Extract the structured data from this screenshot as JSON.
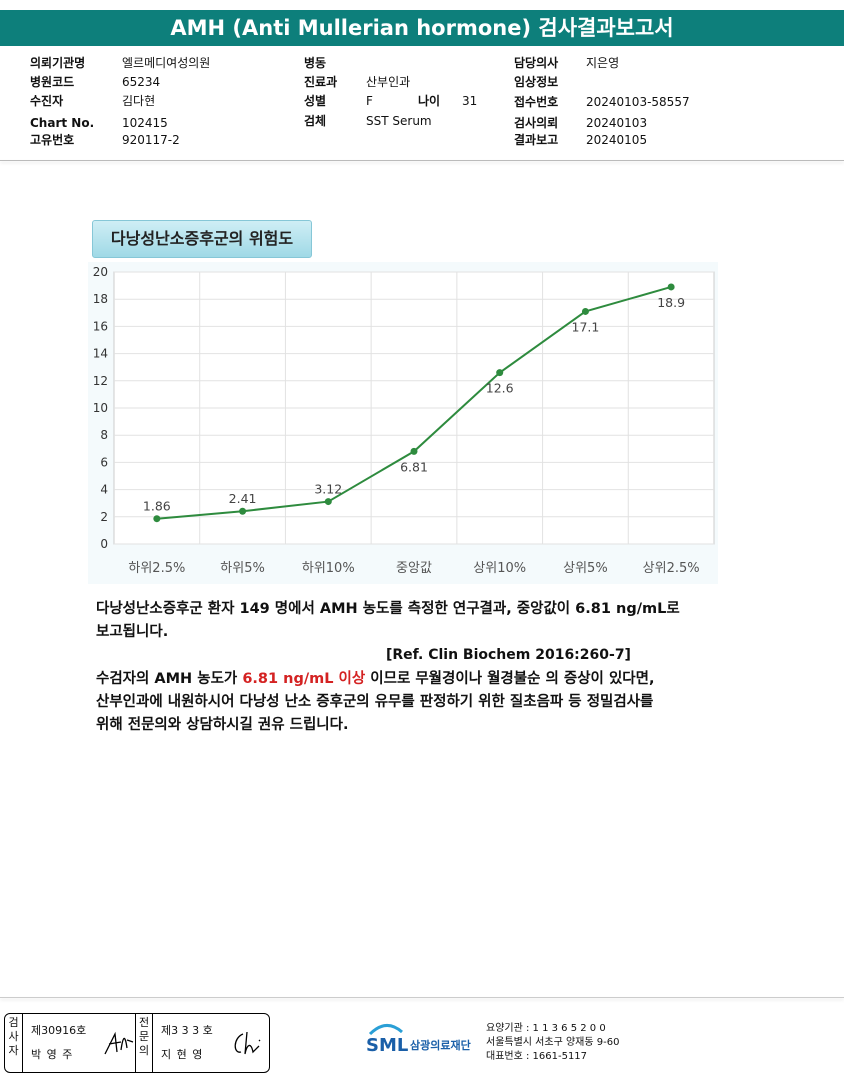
{
  "title": "AMH (Anti Mullerian hormone) 검사결과보고서",
  "info": {
    "col1": [
      {
        "label": "의뢰기관명",
        "value": "엘르메디여성의원"
      },
      {
        "label": "병원코드",
        "value": "65234"
      },
      {
        "label": "수진자",
        "value": "김다현"
      },
      {
        "label": "Chart No.",
        "value": "102415"
      },
      {
        "label": "고유번호",
        "value": "920117-2"
      }
    ],
    "col2": [
      {
        "label": "병동",
        "value": ""
      },
      {
        "label": "진료과",
        "value": "산부인과"
      },
      {
        "label": "성별",
        "value": "F"
      },
      {
        "label": "검체",
        "value": "SST Serum"
      }
    ],
    "age_label": "나이",
    "age_value": "31",
    "col3": [
      {
        "label": "담당의사",
        "value": "지은영"
      },
      {
        "label": "임상정보",
        "value": ""
      },
      {
        "label": "접수번호",
        "value": "20240103-58557"
      },
      {
        "label": "검사의뢰",
        "value": "20240103"
      },
      {
        "label": "결과보고",
        "value": "20240105"
      }
    ]
  },
  "chart_title": "다낭성난소증후군의 위험도",
  "chart_data": {
    "type": "line",
    "title": "다낭성난소증후군의 위험도",
    "categories": [
      "하위2.5%",
      "하위5%",
      "하위10%",
      "중앙값",
      "상위10%",
      "상위5%",
      "상위2.5%"
    ],
    "values": [
      1.86,
      2.41,
      3.12,
      6.81,
      12.6,
      17.1,
      18.9
    ],
    "value_labels": [
      "1.86",
      "2.41",
      "3.12",
      "6.81",
      "12.6",
      "17.1",
      "18.9"
    ],
    "ylim": [
      0,
      20
    ],
    "yticks": [
      "0",
      "2",
      "4",
      "6",
      "8",
      "10",
      "12",
      "14",
      "16",
      "18",
      "20"
    ],
    "grid": true,
    "line_color": "#2e8b3e"
  },
  "paragraph1": {
    "line1": "다낭성난소증후군 환자 149 명에서 AMH 농도를 측정한 연구결과, 중앙값이 6.81 ng/mL로",
    "line2": "보고됩니다."
  },
  "reference": "[Ref. Clin Biochem 2016:260-7]",
  "paragraph2": {
    "line1_pre": "수검자의 AMH 농도가 ",
    "line1_red": "6.81 ng/mL 이상",
    "line1_post": " 이므로 무월경이나 월경불순 의 증상이 있다면,",
    "line2": "산부인과에 내원하시어 다낭성 난소 증후군의 유무를 판정하기 위한 질초음파 등 정밀검사를",
    "line3": "위해 전문의와 상담하시길 권유 드립니다."
  },
  "signature": {
    "examiner_label": "검사자",
    "examiner_no": "제30916호",
    "examiner_name": "박 영 주",
    "specialist_label": "전문의",
    "specialist_no": "제3 3 3 호",
    "specialist_name": "지 현 영"
  },
  "footer": {
    "logo_text": "SML",
    "org_name": "삼광의료재단",
    "line1": "요양기관 : 1 1 3 6 5 2 0 0",
    "line2": "서울특별시 서초구 양재동 9-60",
    "line3": "대표번호 : 1661-5117"
  }
}
